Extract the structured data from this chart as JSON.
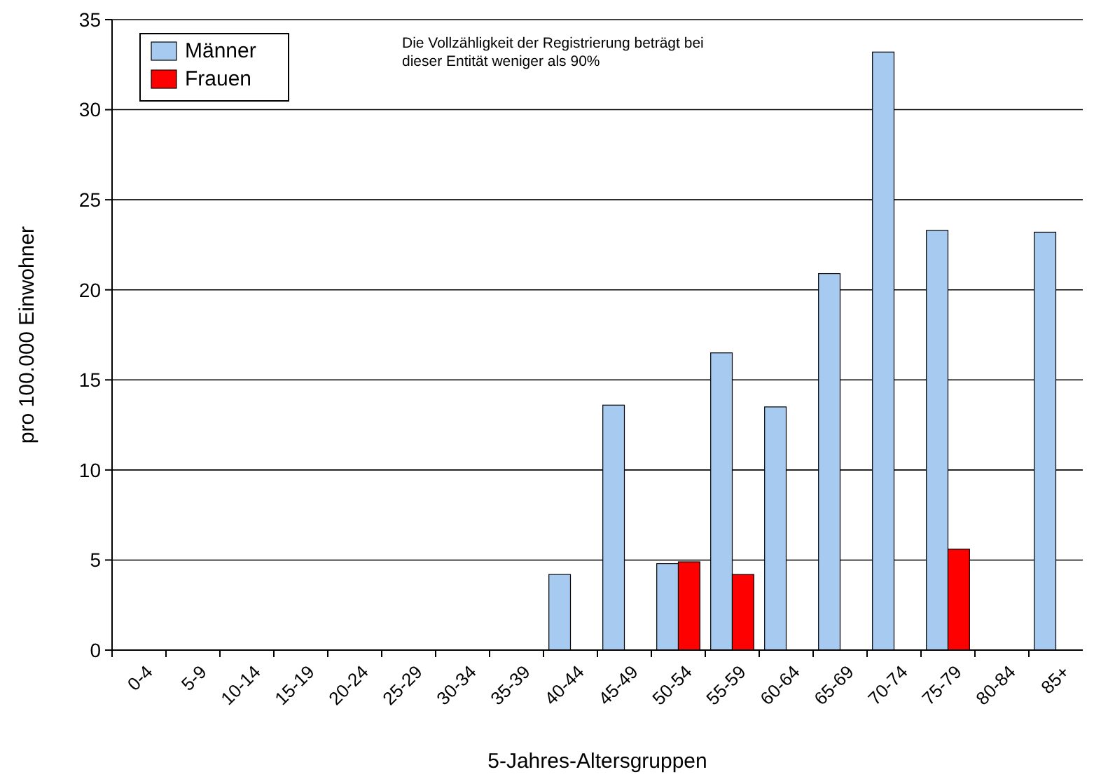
{
  "chart_data": {
    "type": "bar",
    "xlabel": "5-Jahres-Altersgruppen",
    "ylabel": "pro 100.000 Einwohner",
    "annotations": [
      "Die Vollzähligkeit der Registrierung beträgt bei dieser Entität weniger als 90%"
    ],
    "categories": [
      "0-4",
      "5-9",
      "10-14",
      "15-19",
      "20-24",
      "25-29",
      "30-34",
      "35-39",
      "40-44",
      "45-49",
      "50-54",
      "55-59",
      "60-64",
      "65-69",
      "70-74",
      "75-79",
      "80-84",
      "85+"
    ],
    "series": [
      {
        "name": "Männer",
        "color": "#a6caf0",
        "values": [
          0,
          0,
          0,
          0,
          0,
          0,
          0,
          0,
          4.2,
          13.6,
          4.8,
          16.5,
          13.5,
          20.9,
          33.2,
          23.3,
          0,
          23.2
        ]
      },
      {
        "name": "Frauen",
        "color": "#ff0000",
        "values": [
          0,
          0,
          0,
          0,
          0,
          0,
          0,
          0,
          0,
          0,
          4.9,
          4.2,
          0,
          0,
          0,
          5.6,
          0,
          0
        ]
      }
    ],
    "ylim": [
      0,
      35
    ],
    "yticks": [
      0,
      5,
      10,
      15,
      20,
      25,
      30,
      35
    ],
    "grid": "y",
    "legend": "top left"
  }
}
